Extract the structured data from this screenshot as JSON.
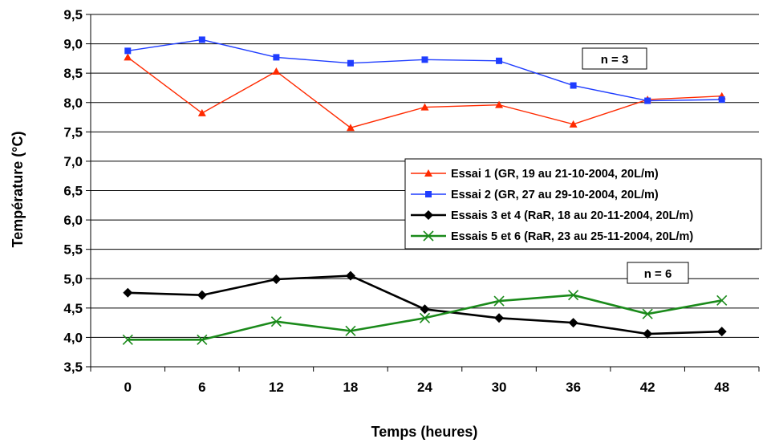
{
  "chart_data": {
    "type": "line",
    "title": "",
    "xlabel": "Temps (heures)",
    "ylabel": "Température (°C)",
    "categories": [
      "0",
      "6",
      "12",
      "18",
      "24",
      "30",
      "36",
      "42",
      "48"
    ],
    "ylim": [
      3.5,
      9.5
    ],
    "yticks": [
      "3,5",
      "4,0",
      "4,5",
      "5,0",
      "5,5",
      "6,0",
      "6,5",
      "7,0",
      "7,5",
      "8,0",
      "8,5",
      "9,0",
      "9,5"
    ],
    "grid": "horizontal",
    "legend_position": "right-middle",
    "series": [
      {
        "name": "Essai 1 (GR, 19 au 21-10-2004, 20L/m)",
        "color": "#ff2a00",
        "marker": "triangle",
        "values": [
          8.77,
          7.82,
          8.53,
          7.57,
          7.92,
          7.96,
          7.63,
          8.05,
          8.11
        ]
      },
      {
        "name": "Essai 2 (GR, 27 au 29-10-2004, 20L/m)",
        "color": "#1f3dff",
        "marker": "square",
        "values": [
          8.88,
          9.07,
          8.77,
          8.67,
          8.73,
          8.71,
          8.29,
          8.03,
          8.05
        ]
      },
      {
        "name": "Essais 3 et 4 (RaR, 18 au 20-11-2004, 20L/m)",
        "color": "#000000",
        "marker": "diamond",
        "values": [
          4.76,
          4.72,
          4.99,
          5.05,
          4.48,
          4.33,
          4.25,
          4.06,
          4.1
        ]
      },
      {
        "name": "Essais 5 et 6 (RaR, 23 au 25-11-2004, 20L/m)",
        "color": "#1a8a1a",
        "marker": "x",
        "values": [
          3.96,
          3.96,
          4.27,
          4.11,
          4.33,
          4.62,
          4.72,
          4.4,
          4.63
        ]
      }
    ],
    "annotations": [
      {
        "text": "n = 3",
        "near": "upper group"
      },
      {
        "text": "n = 6",
        "near": "lower group"
      }
    ]
  }
}
